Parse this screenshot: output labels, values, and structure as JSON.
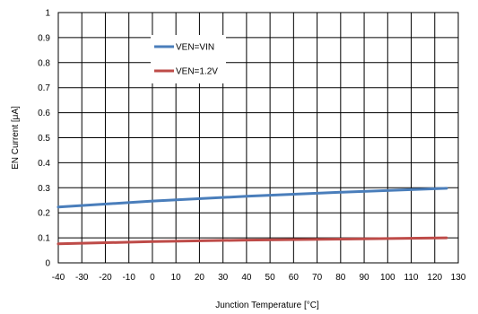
{
  "chart_data": {
    "type": "line",
    "xlabel": "Junction Temperature [°C]",
    "ylabel": "EN Current [μA]",
    "xlim": [
      -40,
      130
    ],
    "ylim": [
      0,
      1
    ],
    "x_ticks": [
      "-40",
      "-30",
      "-20",
      "-10",
      "0",
      "10",
      "20",
      "30",
      "40",
      "50",
      "60",
      "70",
      "80",
      "90",
      "100",
      "110",
      "120",
      "130"
    ],
    "y_ticks": [
      "0",
      "0.1",
      "0.2",
      "0.3",
      "0.4",
      "0.5",
      "0.6",
      "0.7",
      "0.8",
      "0.9",
      "1"
    ],
    "grid": true,
    "legend_position": "upper-left-center",
    "series": [
      {
        "name": "VEN=VIN",
        "color": "#4a7ebb",
        "x": [
          -40,
          0,
          40,
          80,
          125
        ],
        "y": [
          0.223,
          0.247,
          0.266,
          0.282,
          0.298
        ]
      },
      {
        "name": "VEN=1.2V",
        "color": "#be4b48",
        "x": [
          -40,
          0,
          40,
          80,
          125
        ],
        "y": [
          0.076,
          0.085,
          0.091,
          0.095,
          0.1
        ]
      }
    ]
  }
}
